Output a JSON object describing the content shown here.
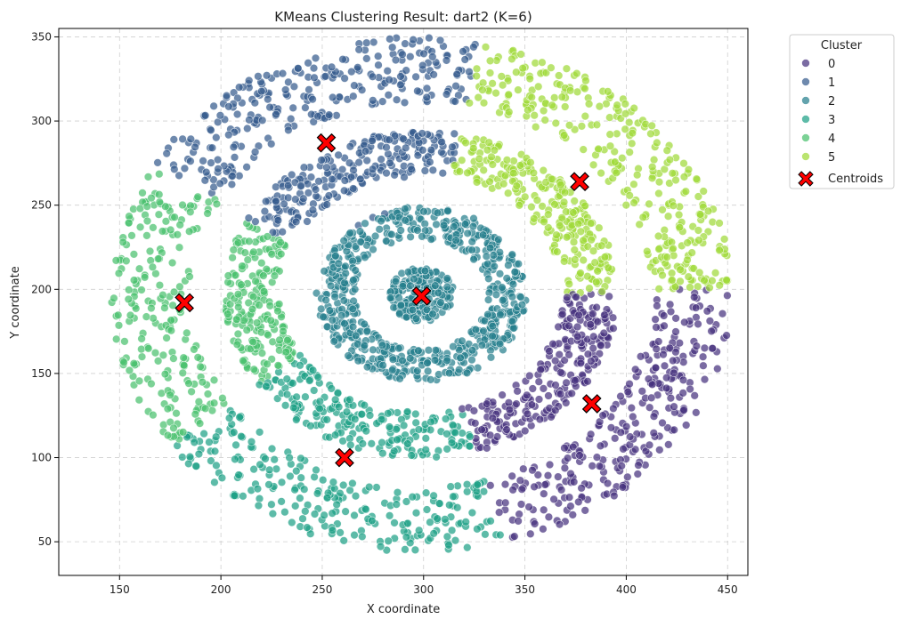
{
  "chart_data": {
    "type": "scatter",
    "title": "KMeans Clustering Result: dart2 (K=6)",
    "xlabel": "X coordinate",
    "ylabel": "Y coordinate",
    "xlim": [
      120,
      460
    ],
    "ylim": [
      30,
      355
    ],
    "xticks": [
      "150",
      "200",
      "250",
      "300",
      "350",
      "400",
      "450"
    ],
    "yticks": [
      "50",
      "100",
      "150",
      "200",
      "250",
      "300",
      "350"
    ],
    "grid": true,
    "legend": {
      "title": "Cluster",
      "placement": "outside-top-right",
      "entries": [
        "0",
        "1",
        "2",
        "3",
        "4",
        "5",
        "Centroids"
      ]
    },
    "colors": [
      "#46327e",
      "#365c8d",
      "#277f8e",
      "#1fa187",
      "#4ac16d",
      "#a0da39"
    ],
    "centroid_color": "#ff0000",
    "structure": {
      "center": [
        299,
        197
      ],
      "rings": [
        {
          "r_min": 0,
          "r_max": 16
        },
        {
          "r_min": 33,
          "r_max": 52
        },
        {
          "r_min": 70,
          "r_max": 97
        },
        {
          "r_min": 114,
          "r_max": 153
        }
      ]
    },
    "centroids": [
      {
        "cluster": "0",
        "x": 383,
        "y": 132
      },
      {
        "cluster": "1",
        "x": 252,
        "y": 287
      },
      {
        "cluster": "2",
        "x": 299,
        "y": 196
      },
      {
        "cluster": "3",
        "x": 261,
        "y": 100
      },
      {
        "cluster": "4",
        "x": 182,
        "y": 192
      },
      {
        "cluster": "5",
        "x": 377,
        "y": 264
      }
    ]
  }
}
